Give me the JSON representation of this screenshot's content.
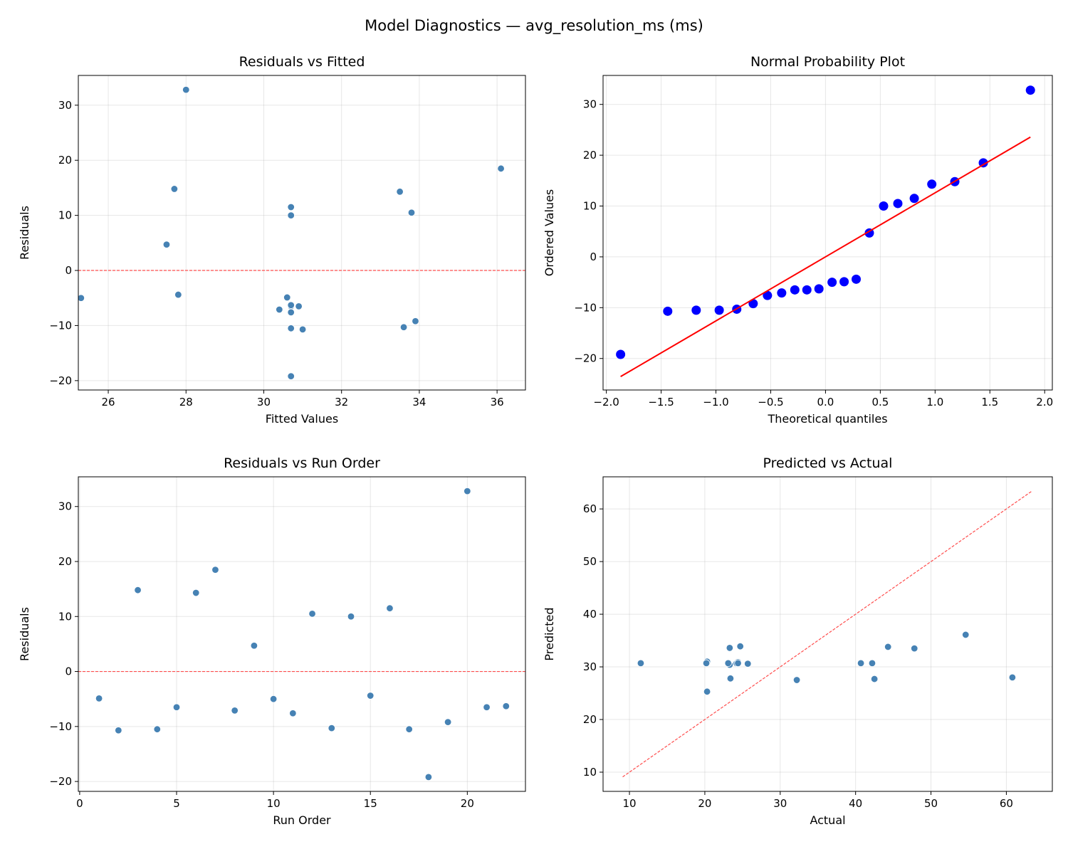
{
  "figure_title": "Model Diagnostics — avg_resolution_ms (ms)",
  "colors": {
    "points": "#4682b4",
    "qq_points": "#0000ff",
    "fit_line": "#ff0000",
    "reference": "#ff4d4d"
  },
  "chart_data": [
    {
      "type": "scatter",
      "title": "Residuals vs Fitted",
      "xlabel": "Fitted Values",
      "ylabel": "Residuals",
      "xlim": [
        25.23,
        36.73
      ],
      "ylim": [
        -21.7,
        35.4
      ],
      "xticks": [
        26,
        28,
        30,
        32,
        34,
        36
      ],
      "yticks": [
        -20,
        -10,
        0,
        10,
        20,
        30
      ],
      "grid": true,
      "reference_line": {
        "type": "horizontal",
        "y": 0,
        "style": "dashed"
      },
      "x": [
        30.6,
        31.0,
        27.7,
        30.7,
        30.7,
        33.5,
        36.1,
        30.4,
        27.5,
        25.3,
        30.7,
        33.8,
        33.6,
        30.7,
        27.8,
        30.7,
        30.7,
        30.7,
        33.9,
        28.0,
        30.9,
        30.7
      ],
      "y": [
        -4.9,
        -10.7,
        14.8,
        -10.5,
        -6.5,
        14.3,
        18.5,
        -7.1,
        4.7,
        -5.0,
        -7.6,
        10.5,
        -10.3,
        10.0,
        -4.4,
        11.5,
        -10.5,
        -19.2,
        -9.2,
        32.8,
        -6.5,
        -6.3
      ]
    },
    {
      "type": "scatter",
      "title": "Normal Probability Plot",
      "xlabel": "Theoretical quantiles",
      "ylabel": "Ordered Values",
      "xlim": [
        -2.03,
        2.07
      ],
      "ylim": [
        -26.2,
        35.7
      ],
      "xticks": [
        -2.0,
        -1.5,
        -1.0,
        -0.5,
        0.0,
        0.5,
        1.0,
        1.5,
        2.0
      ],
      "yticks": [
        -20,
        -10,
        0,
        10,
        20,
        30
      ],
      "grid": true,
      "fit_line": {
        "slope": 12.6,
        "intercept": 0.0
      },
      "x": [
        -1.87,
        -1.44,
        -1.18,
        -0.97,
        -0.81,
        -0.66,
        -0.53,
        -0.4,
        -0.28,
        -0.17,
        -0.06,
        0.06,
        0.17,
        0.28,
        0.4,
        0.53,
        0.66,
        0.81,
        0.97,
        1.18,
        1.44,
        1.87
      ],
      "y": [
        -19.2,
        -10.7,
        -10.5,
        -10.5,
        -10.3,
        -9.2,
        -7.6,
        -7.1,
        -6.5,
        -6.5,
        -6.3,
        -5.0,
        -4.9,
        -4.4,
        4.7,
        10.0,
        10.5,
        11.5,
        14.3,
        14.8,
        18.5,
        32.8
      ]
    },
    {
      "type": "scatter",
      "title": "Residuals vs Run Order",
      "xlabel": "Run Order",
      "ylabel": "Residuals",
      "xlim": [
        -0.07,
        23.0
      ],
      "ylim": [
        -21.8,
        35.4
      ],
      "xticks": [
        0,
        5,
        10,
        15,
        20
      ],
      "yticks": [
        -20,
        -10,
        0,
        10,
        20,
        30
      ],
      "grid": true,
      "reference_line": {
        "type": "horizontal",
        "y": 0,
        "style": "dashed"
      },
      "x": [
        1,
        2,
        3,
        4,
        5,
        6,
        7,
        8,
        9,
        10,
        11,
        12,
        13,
        14,
        15,
        16,
        17,
        18,
        19,
        20,
        21,
        22
      ],
      "y": [
        -4.9,
        -10.7,
        14.8,
        -10.5,
        -6.5,
        14.3,
        18.5,
        -7.1,
        4.7,
        -5.0,
        -7.6,
        10.5,
        -10.3,
        10.0,
        -4.4,
        11.5,
        -10.5,
        -19.2,
        -9.2,
        32.8,
        -6.5,
        -6.3
      ]
    },
    {
      "type": "scatter",
      "title": "Predicted vs Actual",
      "xlabel": "Actual",
      "ylabel": "Predicted",
      "xlim": [
        6.5,
        66.1
      ],
      "ylim": [
        6.35,
        66.1
      ],
      "xticks": [
        10,
        20,
        30,
        40,
        50,
        60
      ],
      "yticks": [
        10,
        20,
        30,
        40,
        50,
        60
      ],
      "grid": true,
      "reference_line": {
        "type": "identity",
        "from": 9.1,
        "to": 63.3,
        "style": "dashed"
      },
      "x": [
        25.7,
        20.3,
        42.5,
        20.2,
        24.2,
        47.8,
        54.6,
        23.3,
        32.2,
        20.3,
        23.1,
        44.3,
        23.3,
        40.7,
        23.4,
        42.2,
        20.2,
        11.5,
        24.7,
        60.8,
        24.4,
        24.4
      ],
      "y": [
        30.6,
        31.0,
        27.7,
        30.7,
        30.7,
        33.5,
        36.1,
        30.4,
        27.5,
        25.3,
        30.7,
        33.8,
        33.6,
        30.7,
        27.8,
        30.7,
        30.7,
        30.7,
        33.9,
        28.0,
        30.9,
        30.7
      ]
    }
  ]
}
